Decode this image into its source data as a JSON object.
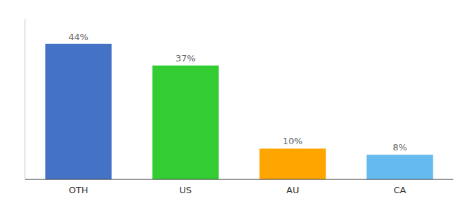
{
  "chart_data": {
    "type": "bar",
    "categories": [
      "OTH",
      "US",
      "AU",
      "CA"
    ],
    "values": [
      44,
      37,
      10,
      8
    ],
    "value_labels": [
      "44%",
      "37%",
      "10%",
      "8%"
    ],
    "colors": [
      "#4472C4",
      "#33CC33",
      "#FFA500",
      "#66BBEE"
    ],
    "ylim": [
      0,
      52
    ],
    "data_labels": true,
    "tick_labels": "x",
    "grid": false
  }
}
